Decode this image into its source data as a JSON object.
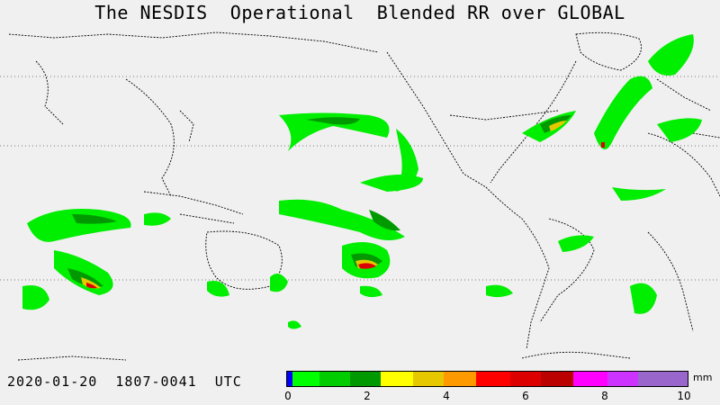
{
  "title": "The NESDIS  Operational  Blended RR over GLOBAL",
  "footer": {
    "date": "2020-01-20",
    "time_range": "1807-0041",
    "timezone": "UTC"
  },
  "legend": {
    "unit": "mm",
    "ticks": [
      "0",
      "2",
      "4",
      "6",
      "8",
      "10"
    ],
    "colors": [
      "#0000ff",
      "#00ff00",
      "#00cc00",
      "#009900",
      "#ffff00",
      "#e6c800",
      "#ff9900",
      "#ff0000",
      "#dd0000",
      "#bb0000",
      "#ff00ff",
      "#cc33ff",
      "#9966cc"
    ]
  }
}
